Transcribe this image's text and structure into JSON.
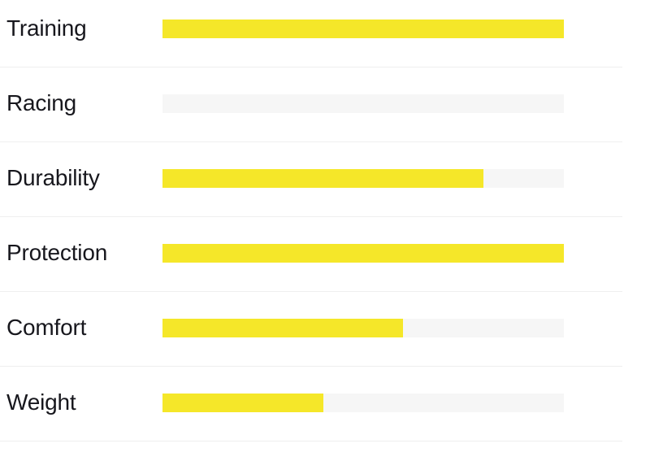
{
  "chart_data": {
    "type": "bar",
    "orientation": "horizontal",
    "categories": [
      "Training",
      "Racing",
      "Durability",
      "Protection",
      "Comfort",
      "Weight"
    ],
    "values": [
      100,
      0,
      80,
      100,
      60,
      40
    ],
    "title": "",
    "xlabel": "",
    "ylabel": "",
    "xlim": [
      0,
      100
    ],
    "grid": false,
    "legend": "none",
    "bar_color": "#f5e729",
    "track_color": "#f6f6f6",
    "divider_color": "#efefef",
    "label_color": "#17171d"
  }
}
